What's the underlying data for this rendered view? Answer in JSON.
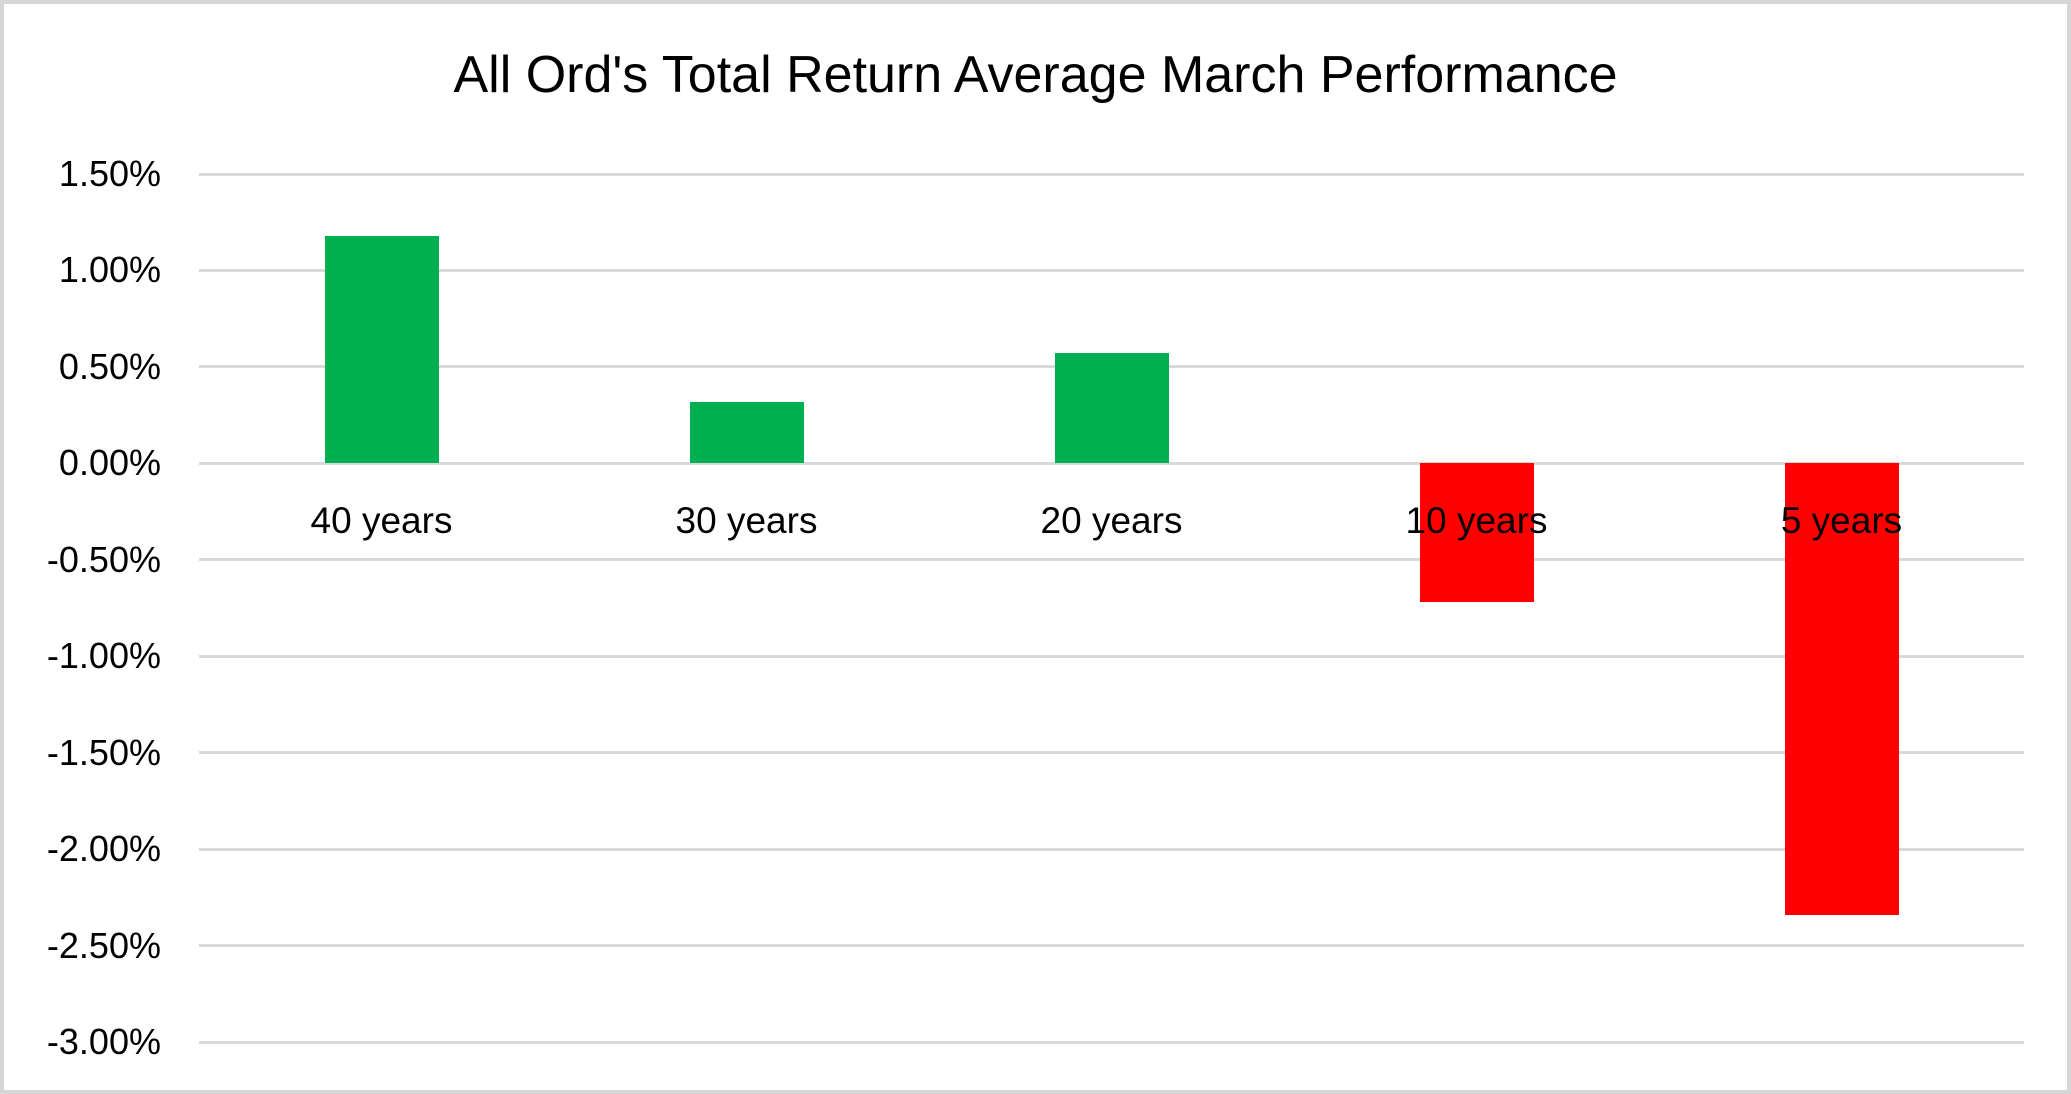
{
  "chart_data": {
    "type": "bar",
    "title": "All Ord's Total Return Average March Performance",
    "categories": [
      "40 years",
      "30 years",
      "20 years",
      "10 years",
      "5 years"
    ],
    "values": [
      1.18,
      0.32,
      0.57,
      -0.72,
      -2.34
    ],
    "unit": "%",
    "xlabel": "",
    "ylabel": "",
    "ylim": [
      -3.0,
      1.5
    ],
    "ytick_step": 0.5,
    "yticks": [
      1.5,
      1.0,
      0.5,
      0.0,
      -0.5,
      -1.0,
      -1.5,
      -2.0,
      -2.5,
      -3.0
    ],
    "ytick_labels": [
      "1.50%",
      "1.00%",
      "0.50%",
      "0.00%",
      "-0.50%",
      "-1.00%",
      "-1.50%",
      "-2.00%",
      "-2.50%",
      "-3.00%"
    ],
    "grid": true,
    "legend": "none",
    "colors": {
      "positive_bar": "#00B050",
      "negative_bar": "#FF0000",
      "gridline": "#D9D9D9",
      "axis_text": "#000000",
      "title_text": "#000000",
      "chart_border": "#D6D6D6",
      "background": "#FFFFFF"
    }
  }
}
